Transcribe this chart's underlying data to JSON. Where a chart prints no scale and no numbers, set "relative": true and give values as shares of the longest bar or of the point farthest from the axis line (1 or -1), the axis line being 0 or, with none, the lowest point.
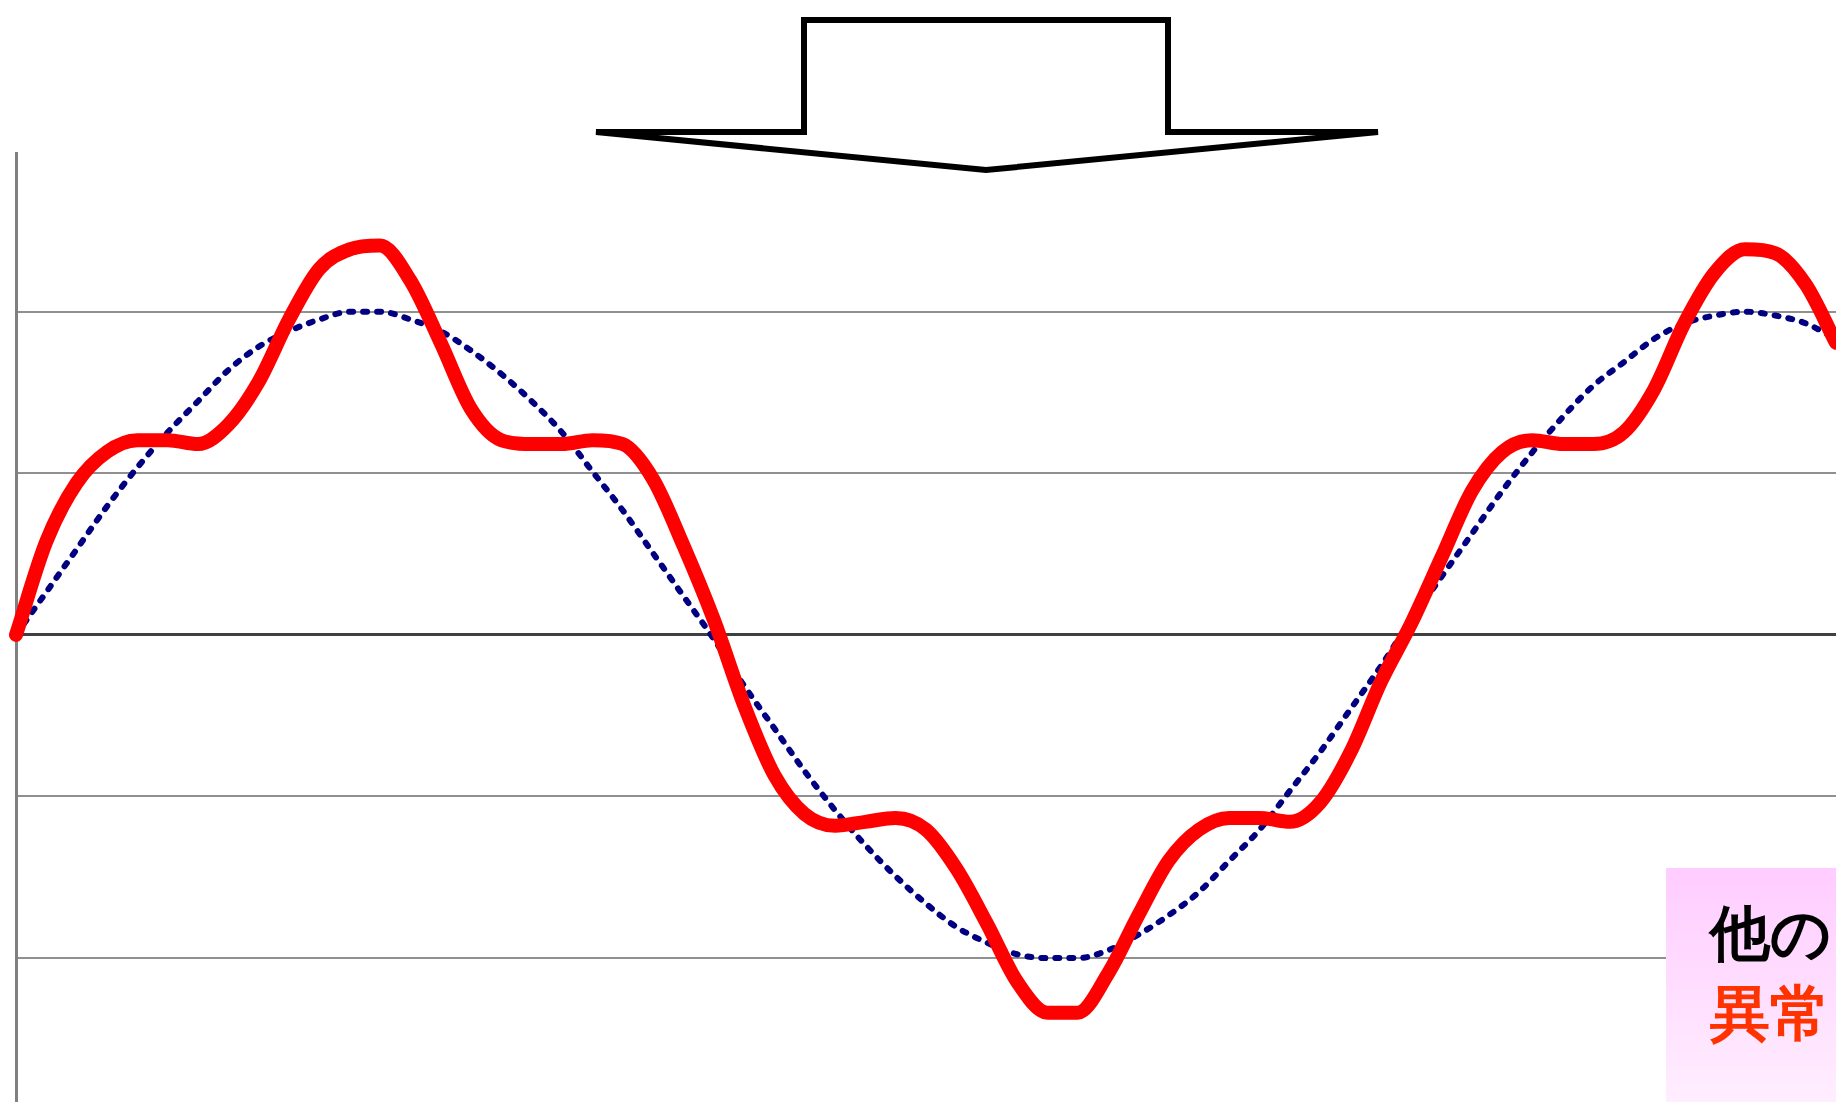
{
  "chart_data": {
    "type": "line",
    "relative": true,
    "grid": "y",
    "legend": false,
    "marker": "none",
    "categories": [
      null,
      null,
      null,
      null,
      null,
      null,
      null,
      null,
      null,
      null,
      null,
      null,
      null,
      null,
      null,
      null,
      null,
      null,
      null,
      null,
      null,
      null,
      null,
      null,
      null,
      null,
      null,
      null,
      null,
      null,
      null,
      null,
      null,
      null,
      null,
      null,
      null,
      null,
      null,
      null,
      null,
      null,
      null,
      null,
      null,
      null,
      null,
      null,
      null,
      null,
      null,
      null,
      null,
      null,
      null,
      null,
      null,
      null,
      null,
      null,
      null
    ],
    "series": [
      {
        "color": "#000080",
        "line_style": "dotted",
        "values": [
          0,
          0.11,
          0.22,
          0.33,
          0.43,
          0.52,
          0.6,
          0.68,
          0.74,
          0.78,
          0.81,
          0.83,
          0.83,
          0.81,
          0.78,
          0.73,
          0.67,
          0.6,
          0.52,
          0.42,
          0.32,
          0.21,
          0.1,
          -0.01,
          -0.13,
          -0.24,
          -0.35,
          -0.45,
          -0.54,
          -0.62,
          -0.69,
          -0.75,
          -0.79,
          -0.82,
          -0.83,
          -0.83,
          -0.81,
          -0.77,
          -0.72,
          -0.66,
          -0.58,
          -0.5,
          -0.4,
          -0.3,
          -0.19,
          -0.08,
          0.04,
          0.15,
          0.26,
          0.37,
          0.47,
          0.56,
          0.64,
          0.7,
          0.76,
          0.8,
          0.82,
          0.83,
          0.82,
          0.8,
          0.76
        ]
      },
      {
        "color": "#ff0000",
        "line_style": "solid",
        "values": [
          0,
          0.24,
          0.39,
          0.47,
          0.5,
          0.5,
          0.49,
          0.54,
          0.65,
          0.81,
          0.94,
          0.99,
          1,
          0.91,
          0.75,
          0.58,
          0.5,
          0.49,
          0.49,
          0.5,
          0.49,
          0.4,
          0.23,
          0.04,
          -0.18,
          -0.36,
          -0.46,
          -0.49,
          -0.48,
          -0.47,
          -0.5,
          -0.6,
          -0.74,
          -0.89,
          -0.97,
          -0.97,
          -0.87,
          -0.72,
          -0.58,
          -0.5,
          -0.47,
          -0.47,
          -0.48,
          -0.43,
          -0.3,
          -0.12,
          0.03,
          0.2,
          0.37,
          0.47,
          0.5,
          0.49,
          0.49,
          0.52,
          0.63,
          0.8,
          0.93,
          0.99,
          0.98,
          0.9,
          0.75
        ]
      }
    ],
    "annotations": [
      "他の",
      "異常"
    ]
  }
}
